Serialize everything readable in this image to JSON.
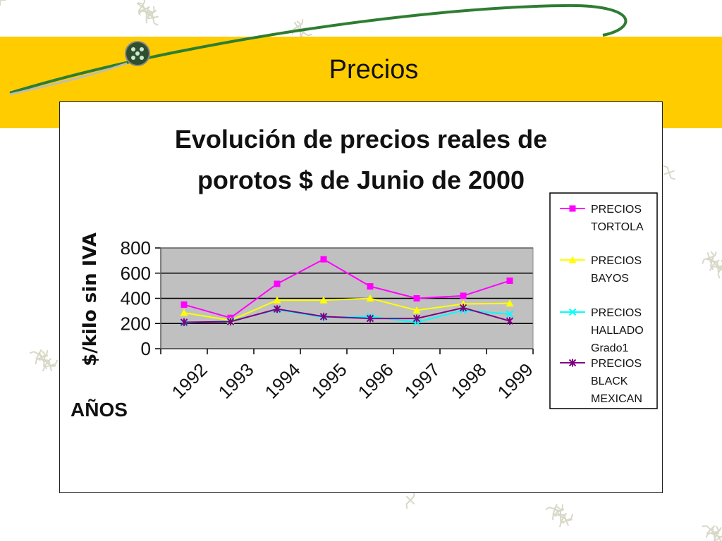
{
  "slide": {
    "title": "Precios",
    "colors": {
      "band": "#FFCC00",
      "swoosh": "#2E7D32",
      "pattern": "#D8D8C8"
    },
    "icons": [
      "ornament-icon"
    ]
  },
  "chart_data": {
    "type": "line",
    "title_lines": [
      "Evolución de precios reales de",
      "porotos   $ de Junio de 2000"
    ],
    "xlabel": "AÑOS",
    "ylabel": "$/kilo sin IVA",
    "categories": [
      "1992",
      "1993",
      "1994",
      "1995",
      "1996",
      "1997",
      "1998",
      "1999"
    ],
    "ylim": [
      0,
      800
    ],
    "yticks": [
      "800",
      "600",
      "400",
      "200",
      "0"
    ],
    "ytick_values": [
      800,
      600,
      400,
      200,
      0
    ],
    "grid": true,
    "plot_background": "#C0C0C0",
    "legend_placement": "right",
    "series": [
      {
        "name": "PRECIOS TORTOLA",
        "legend_lines": [
          "PRECIOS",
          "TORTOLA"
        ],
        "color": "#FF00FF",
        "marker": "square",
        "values": [
          350,
          245,
          515,
          710,
          495,
          400,
          420,
          540
        ]
      },
      {
        "name": "PRECIOS BAYOS",
        "legend_lines": [
          "PRECIOS",
          "BAYOS"
        ],
        "color": "#FFFF00",
        "marker": "triangle",
        "values": [
          285,
          225,
          385,
          385,
          400,
          305,
          355,
          360
        ]
      },
      {
        "name": "PRECIOS HALLADO Grado1",
        "legend_lines": [
          "PRECIOS",
          "HALLADO",
          "Grado1"
        ],
        "color": "#00FFFF",
        "marker": "x",
        "values": [
          205,
          220,
          310,
          250,
          255,
          210,
          305,
          275
        ]
      },
      {
        "name": "PRECIOS BLACK MEXICAN",
        "legend_lines": [
          "PRECIOS",
          "BLACK",
          "MEXICAN"
        ],
        "color": "#800080",
        "marker": "star",
        "values": [
          210,
          215,
          315,
          255,
          240,
          240,
          325,
          220
        ]
      }
    ]
  }
}
